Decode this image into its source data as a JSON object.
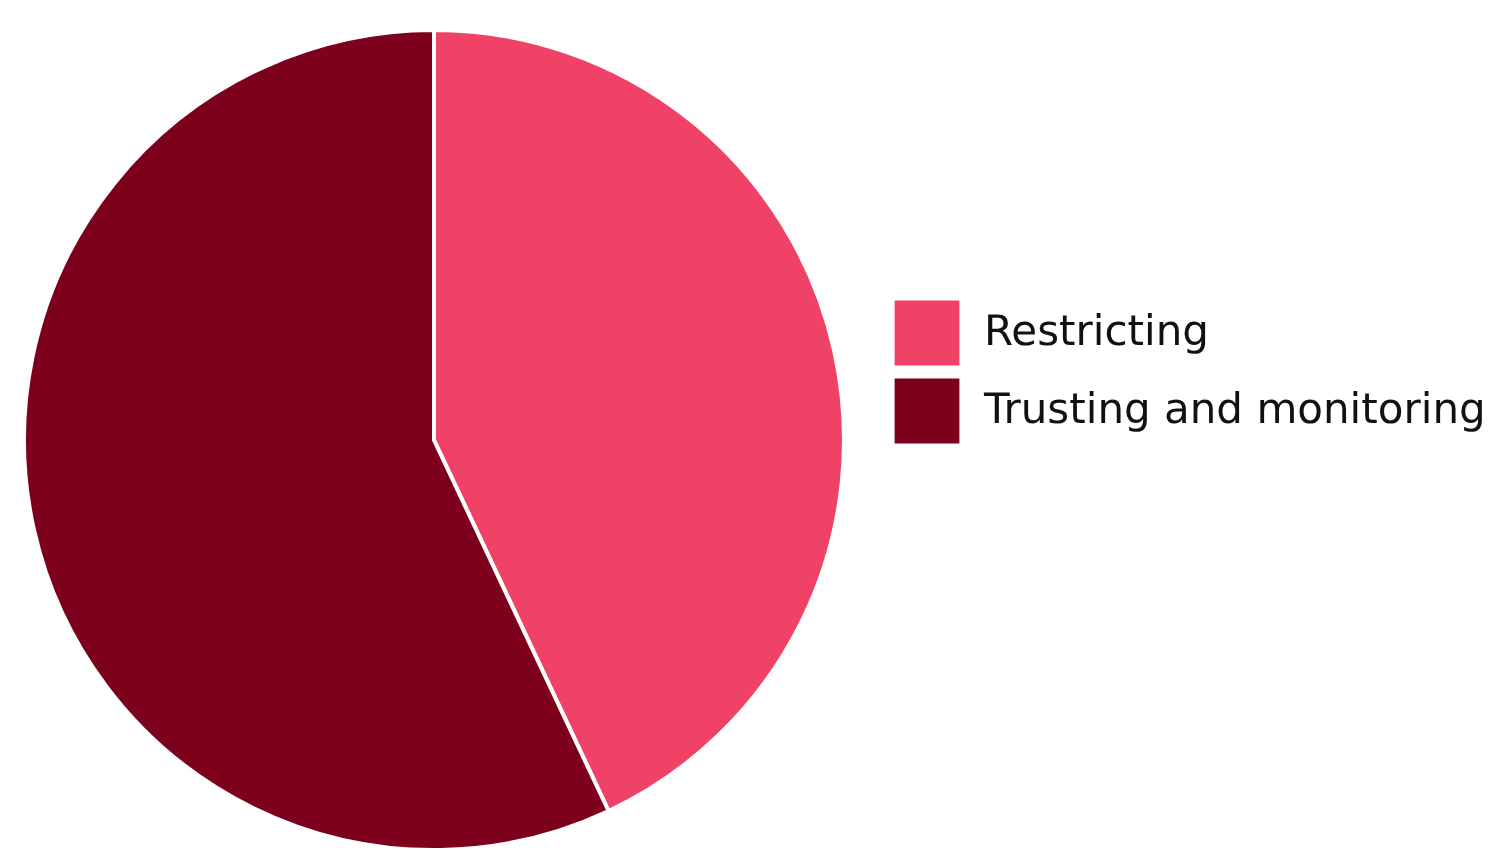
{
  "chart_data": {
    "type": "pie",
    "categories": [
      "Restricting",
      "Trusting and monitoring"
    ],
    "values": [
      43,
      57
    ],
    "colors": [
      "#f04266",
      "#7d001c"
    ],
    "legend": "right"
  }
}
